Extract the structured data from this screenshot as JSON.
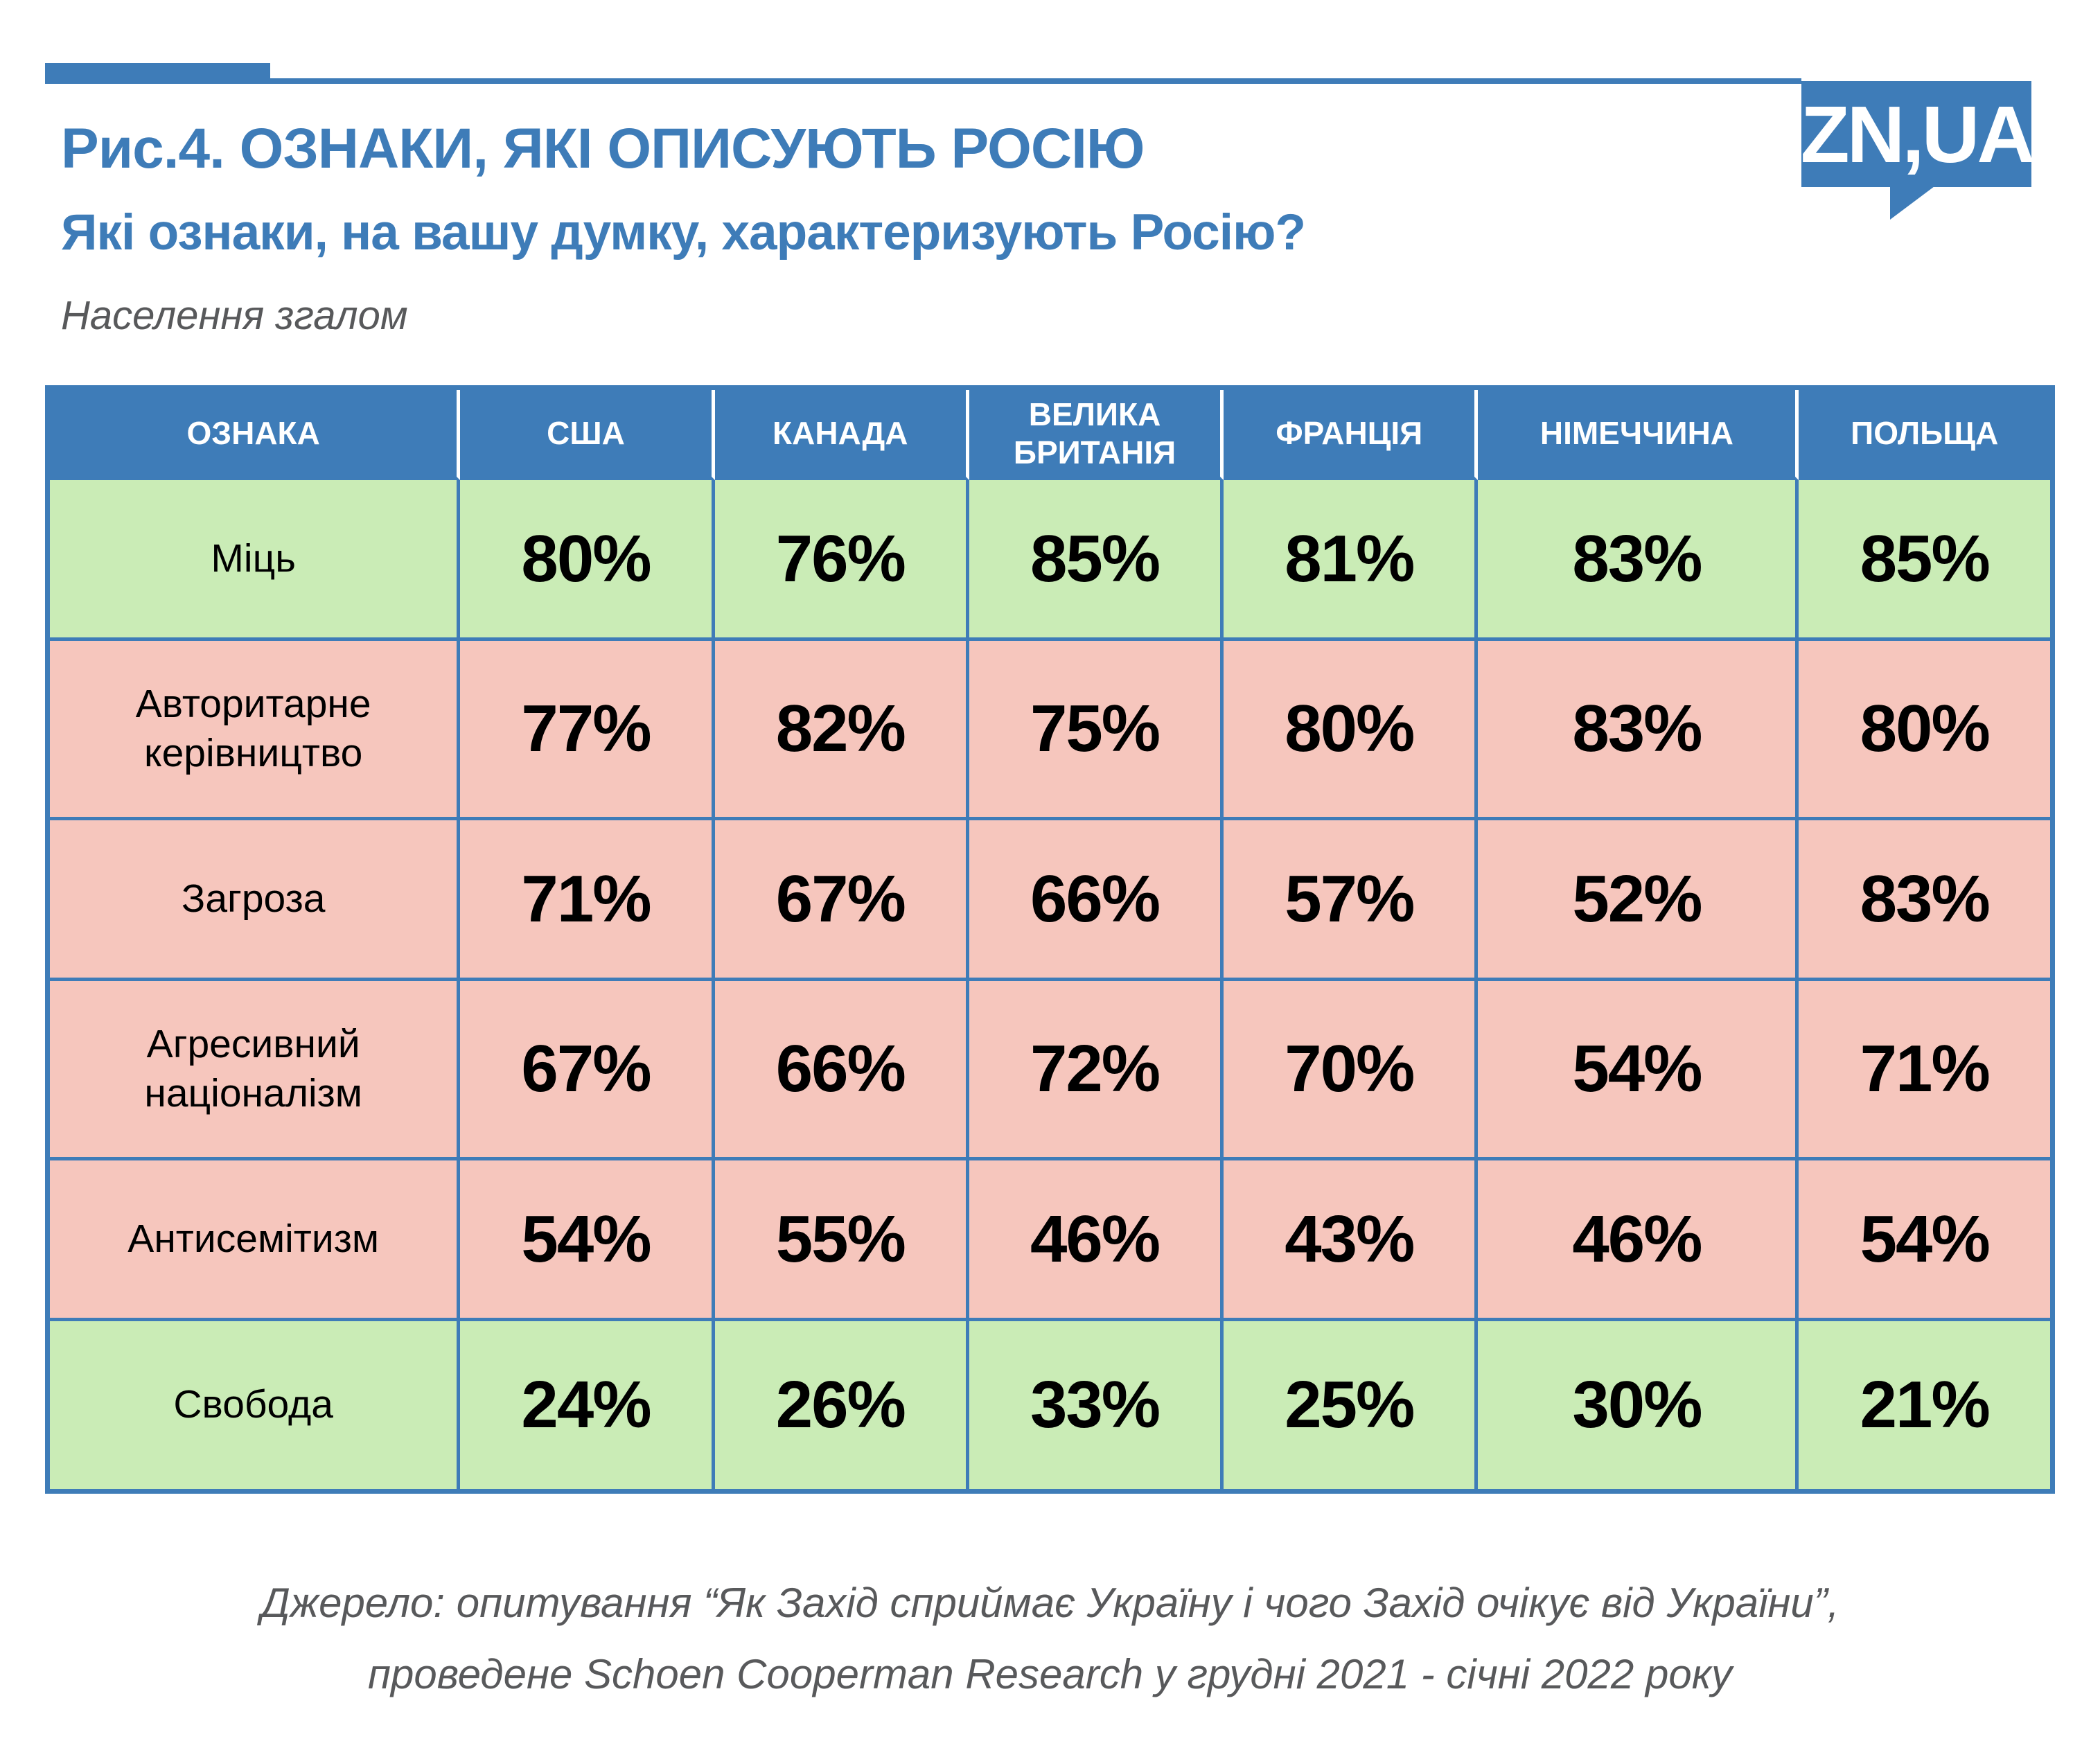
{
  "page": {
    "title": "Рис.4. ОЗНАКИ, ЯКІ ОПИСУЮТЬ РОСІЮ",
    "subtitle": "Які ознаки, на вашу думку, характеризують Росію?",
    "note": "Населення згалом"
  },
  "logo": {
    "text": "ZN,UA"
  },
  "table": {
    "columns": [
      "ОЗНАКА",
      "США",
      "КАНАДА",
      "ВЕЛИКА БРИТАНІЯ",
      "ФРАНЦІЯ",
      "НІМЕЧЧИНА",
      "ПОЛЬЩА"
    ],
    "rows": [
      {
        "label": "Міць",
        "tone": "green",
        "values": [
          "80%",
          "76%",
          "85%",
          "81%",
          "83%",
          "85%"
        ]
      },
      {
        "label": "Авторитарне керівництво",
        "tone": "pink",
        "values": [
          "77%",
          "82%",
          "75%",
          "80%",
          "83%",
          "80%"
        ]
      },
      {
        "label": "Загроза",
        "tone": "pink",
        "values": [
          "71%",
          "67%",
          "66%",
          "57%",
          "52%",
          "83%"
        ]
      },
      {
        "label": "Агресивний націоналізм",
        "tone": "pink",
        "values": [
          "67%",
          "66%",
          "72%",
          "70%",
          "54%",
          "71%"
        ]
      },
      {
        "label": "Антисемітизм",
        "tone": "pink",
        "values": [
          "54%",
          "55%",
          "46%",
          "43%",
          "46%",
          "54%"
        ]
      },
      {
        "label": "Свобода",
        "tone": "green",
        "values": [
          "24%",
          "26%",
          "33%",
          "25%",
          "30%",
          "21%"
        ]
      }
    ]
  },
  "footer": {
    "line1": "Джерело: опитування “Як Захід сприймає Україну і чого Захід очікує від України”,",
    "line2": "проведене Schoen Cooperman Research у грудні 2021 - січні 2022 року"
  },
  "colors": {
    "blue": "#3e7cb8",
    "green": "#caecb6",
    "pink": "#f6c6bd",
    "text-gray": "#58595b",
    "text-dark": "#000000"
  },
  "chart_data": {
    "type": "table",
    "title": "Рис.4. ОЗНАКИ, ЯКІ ОПИСУЮТЬ РОСІЮ",
    "subtitle": "Які ознаки, на вашу думку, характеризують Росію?",
    "population_note": "Населення згалом",
    "row_header": "ОЗНАКА",
    "categories": [
      "США",
      "КАНАДА",
      "ВЕЛИКА БРИТАНІЯ",
      "ФРАНЦІЯ",
      "НІМЕЧЧИНА",
      "ПОЛЬЩА"
    ],
    "unit": "%",
    "series": [
      {
        "name": "Міць",
        "highlight": "green",
        "values": [
          80,
          76,
          85,
          81,
          83,
          85
        ]
      },
      {
        "name": "Авторитарне керівництво",
        "highlight": "pink",
        "values": [
          77,
          82,
          75,
          80,
          83,
          80
        ]
      },
      {
        "name": "Загроза",
        "highlight": "pink",
        "values": [
          71,
          67,
          66,
          57,
          52,
          83
        ]
      },
      {
        "name": "Агресивний націоналізм",
        "highlight": "pink",
        "values": [
          67,
          66,
          72,
          70,
          54,
          71
        ]
      },
      {
        "name": "Антисемітизм",
        "highlight": "pink",
        "values": [
          54,
          55,
          46,
          43,
          46,
          54
        ]
      },
      {
        "name": "Свобода",
        "highlight": "green",
        "values": [
          24,
          26,
          33,
          25,
          30,
          21
        ]
      }
    ],
    "source": "опитування “Як Захід сприймає Україну і чого Захід очікує від України”, проведене Schoen Cooperman Research у грудні 2021 - січні 2022 року"
  }
}
